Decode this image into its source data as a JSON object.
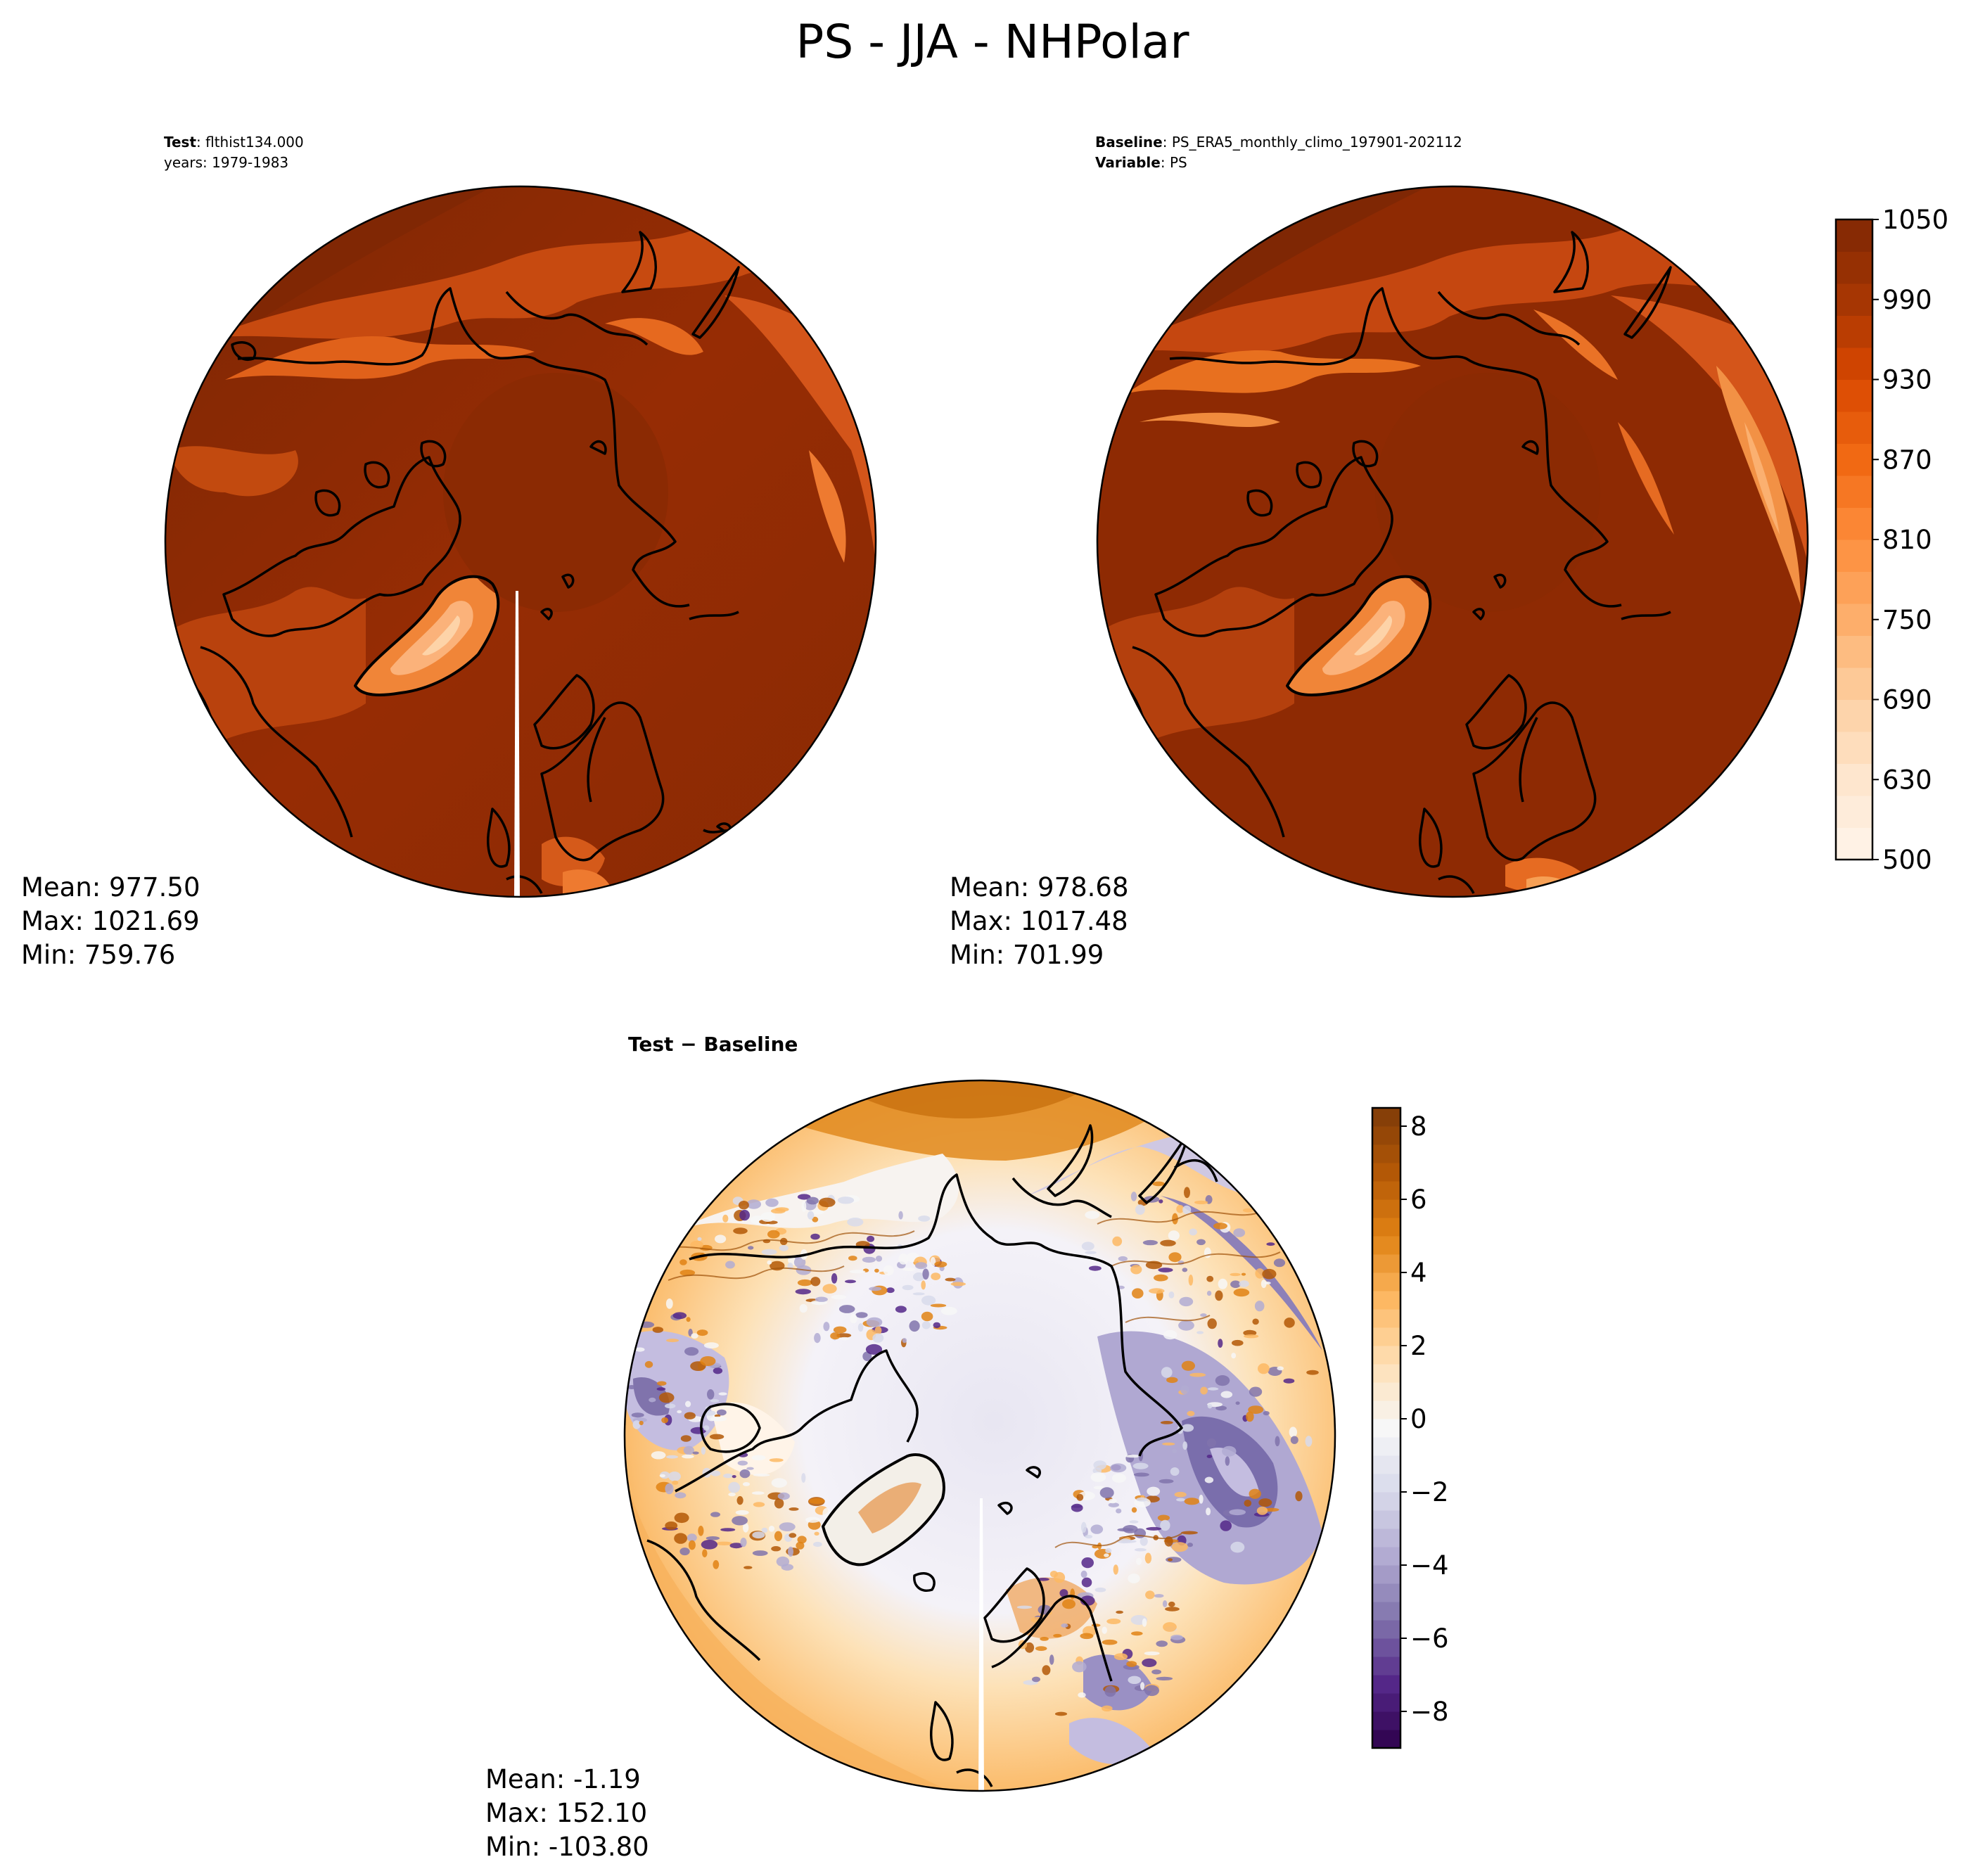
{
  "figure_title": "PS - JJA - NHPolar",
  "chart_data": [
    {
      "type": "heatmap",
      "panel": "test",
      "header_bold_1": "Test",
      "header_text_1": ": flthist134.000",
      "header_text_2": "years: 1979-1983",
      "stats": {
        "mean": "Mean: 977.50",
        "max": "Max: 1021.69",
        "min": "Min: 759.76"
      },
      "colormap": "Oranges",
      "clim": [
        500,
        1050
      ],
      "extremes": {
        "mean": 977.5,
        "max": 1021.69,
        "min": 759.76
      }
    },
    {
      "type": "heatmap",
      "panel": "baseline",
      "header_bold_1": "Baseline",
      "header_text_1": ": PS_ERA5_monthly_climo_197901-202112",
      "header_bold_2": "Variable",
      "header_text_2": ": PS",
      "stats": {
        "mean": "Mean: 978.68",
        "max": "Max: 1017.48",
        "min": "Min: 701.99"
      },
      "colormap": "Oranges",
      "clim": [
        500,
        1050
      ],
      "colorbar_ticks": [
        "1050",
        "990",
        "930",
        "870",
        "810",
        "750",
        "690",
        "630",
        "500"
      ],
      "colorbar_levels": [
        500,
        630,
        690,
        750,
        810,
        870,
        930,
        990,
        1050
      ],
      "extremes": {
        "mean": 978.68,
        "max": 1017.48,
        "min": 701.99
      }
    },
    {
      "type": "heatmap",
      "panel": "difference",
      "header_bold_1": "Test − Baseline",
      "stats": {
        "mean": "Mean: -1.19",
        "max": "Max: 152.10",
        "min": "Min: -103.80"
      },
      "colormap": "PuOr",
      "clim": [
        -9,
        8.5
      ],
      "colorbar_ticks": [
        "8",
        "6",
        "4",
        "2",
        "0",
        "−2",
        "−4",
        "−6",
        "−8"
      ],
      "colorbar_values": [
        8,
        6,
        4,
        2,
        0,
        -2,
        -4,
        -6,
        -8
      ],
      "extremes": {
        "mean": -1.19,
        "max": 152.1,
        "min": -103.8
      }
    }
  ],
  "colors": {
    "orange_ramp": [
      "#fff5eb",
      "#fee6ce",
      "#fdd0a2",
      "#fdae6b",
      "#fd8d3c",
      "#f16913",
      "#d94801",
      "#a63603",
      "#7f2704"
    ],
    "puor_ramp": [
      "#2d004b",
      "#542788",
      "#8073ac",
      "#b2abd2",
      "#d8daeb",
      "#f7f7f7",
      "#fee0b6",
      "#fdb863",
      "#e08214",
      "#b35806",
      "#7f3b08"
    ]
  }
}
